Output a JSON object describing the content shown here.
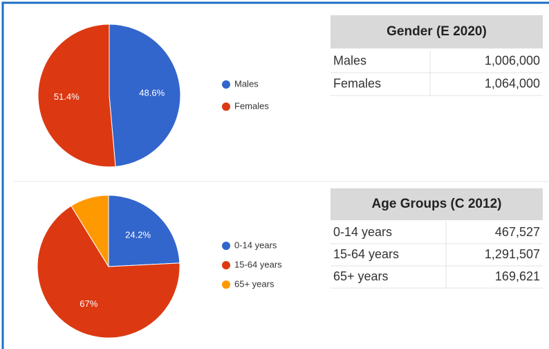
{
  "chart_data": [
    {
      "type": "pie",
      "categories": [
        "Males",
        "Females"
      ],
      "values": [
        48.6,
        51.4
      ],
      "value_labels": [
        "48.6%",
        "51.4%"
      ],
      "colors": [
        "#3366cc",
        "#dc3912"
      ],
      "legend": "right"
    },
    {
      "type": "pie",
      "categories": [
        "0-14 years",
        "15-64 years",
        "65+ years"
      ],
      "values": [
        24.2,
        67,
        8.8
      ],
      "value_labels": [
        "24.2%",
        "67%",
        null
      ],
      "colors": [
        "#3366cc",
        "#dc3912",
        "#ff9900"
      ],
      "legend": "right"
    }
  ],
  "tables": [
    {
      "title": "Gender (E 2020)",
      "rows": [
        [
          "Males",
          "1,006,000"
        ],
        [
          "Females",
          "1,064,000"
        ]
      ]
    },
    {
      "title": "Age Groups (C 2012)",
      "rows": [
        [
          "0-14 years",
          "467,527"
        ],
        [
          "15-64 years",
          "1,291,507"
        ],
        [
          "65+ years",
          "169,621"
        ]
      ]
    }
  ]
}
